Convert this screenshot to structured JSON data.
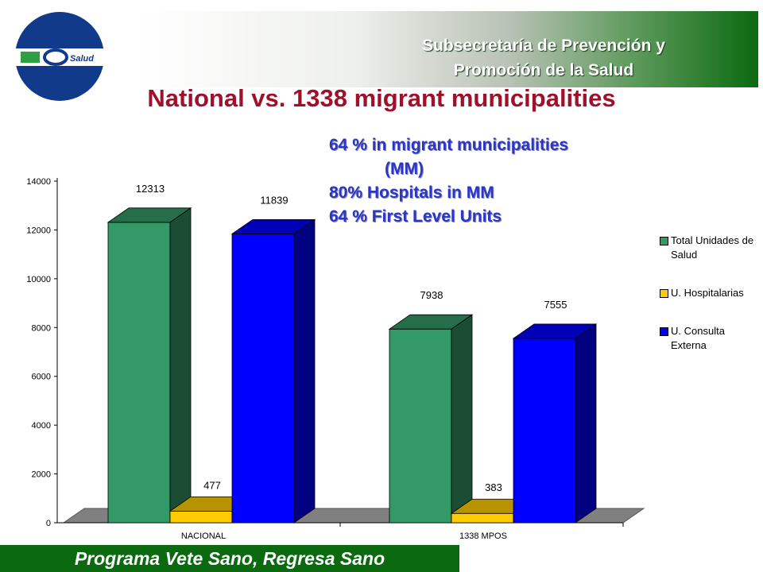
{
  "header": {
    "line1": "Subsecretaría de Prevención y",
    "line2": "Promoción de la Salud"
  },
  "logo": {
    "text": "Salud"
  },
  "title": "National vs. 1338 migrant municipalities",
  "notes": [
    "64 % in migrant municipalities",
    "(MM)",
    "80%  Hospitals in MM",
    "64 % First Level Units"
  ],
  "footer": "Programa Vete Sano, Regresa Sano",
  "colors": {
    "green": "#339966",
    "yellow": "#ffcc00",
    "blue": "#0000ff",
    "title": "#a0102a",
    "notes": "#2b36c8",
    "footer": "#0b6a10"
  },
  "chart_data": {
    "type": "bar",
    "categories": [
      "NACIONAL",
      "1338 MPOS"
    ],
    "series": [
      {
        "name": "Total Unidades de Salud",
        "values": [
          12313,
          7938
        ],
        "color": "#339966"
      },
      {
        "name": "U. Hospitalarias",
        "values": [
          477,
          383
        ],
        "color": "#ffcc00"
      },
      {
        "name": "U. Consulta Externa",
        "values": [
          11839,
          7555
        ],
        "color": "#0000ff"
      }
    ],
    "data_labels": [
      [
        "12313",
        "7938"
      ],
      [
        "477",
        "383"
      ],
      [
        "11839",
        "7555"
      ]
    ],
    "yticks": [
      "0",
      "2000",
      "4000",
      "6000",
      "8000",
      "10000",
      "12000",
      "14000"
    ],
    "ylim": [
      0,
      14000
    ],
    "legend": "right",
    "style": "3d"
  }
}
